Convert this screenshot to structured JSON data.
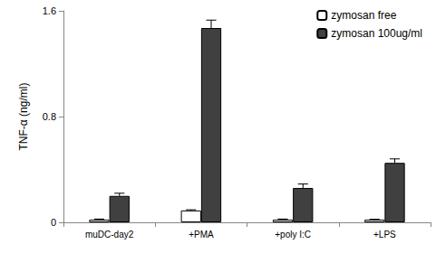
{
  "chart_data": {
    "type": "bar",
    "y_label": "TNF-α (ng/ml)",
    "categories": [
      "muDC-day2",
      "+PMA",
      "+poly I:C",
      "+LPS"
    ],
    "series": [
      {
        "name": "zymosan free",
        "color": "#ffffff",
        "values": [
          0.02,
          0.09,
          0.02,
          0.02
        ],
        "errors": [
          0.005,
          0.005,
          0.005,
          0.003
        ]
      },
      {
        "name": "zymosan 100ug/ml",
        "color": "#404040",
        "values": [
          0.2,
          1.47,
          0.26,
          0.45
        ],
        "errors": [
          0.02,
          0.06,
          0.03,
          0.03
        ]
      }
    ],
    "ylim": [
      0,
      1.6
    ],
    "yticks": [
      0,
      0.8,
      1.6
    ],
    "grid": false,
    "legend": "upper right"
  }
}
